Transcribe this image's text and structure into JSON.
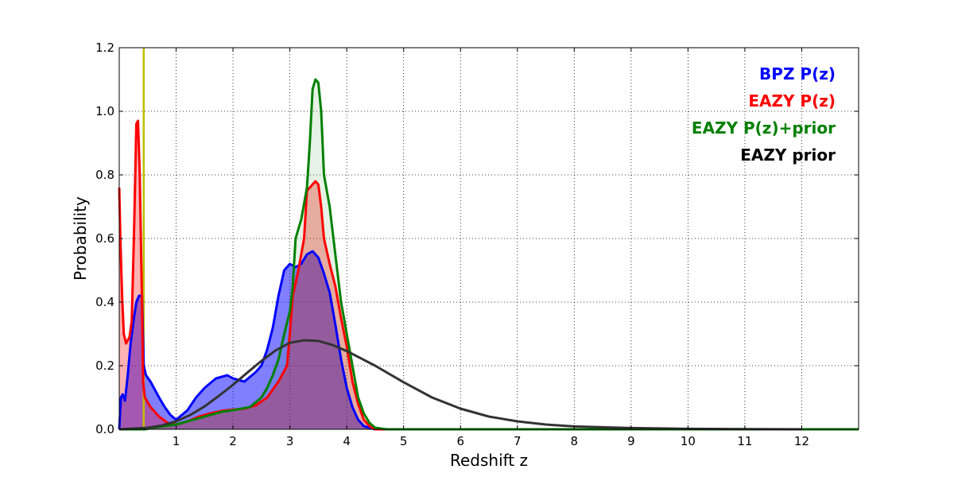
{
  "chart_data": {
    "type": "area",
    "title": "",
    "xlabel": "Redshift z",
    "ylabel": "Probability",
    "xlim": [
      0,
      13
    ],
    "ylim": [
      0,
      1.2
    ],
    "xticks": [
      1,
      2,
      3,
      4,
      5,
      6,
      7,
      8,
      9,
      10,
      11,
      12
    ],
    "yticks": [
      "0.0",
      "0.2",
      "0.4",
      "0.6",
      "0.8",
      "1.0",
      "1.2"
    ],
    "grid": true,
    "legend_placement": "top-right",
    "vertical_line": {
      "x": 0.43,
      "color": "#bfbf00"
    },
    "series": [
      {
        "name": "BPZ P(z)",
        "color": "#0000ff",
        "fill": "#0000ff",
        "fill_opacity": 0.5,
        "points": [
          [
            0,
            0
          ],
          [
            0.03,
            0.1
          ],
          [
            0.06,
            0.11
          ],
          [
            0.1,
            0.09
          ],
          [
            0.15,
            0.17
          ],
          [
            0.2,
            0.27
          ],
          [
            0.25,
            0.34
          ],
          [
            0.3,
            0.4
          ],
          [
            0.35,
            0.42
          ],
          [
            0.4,
            0.42
          ],
          [
            0.43,
            0.2
          ],
          [
            0.47,
            0.17
          ],
          [
            0.55,
            0.15
          ],
          [
            0.7,
            0.1
          ],
          [
            0.8,
            0.07
          ],
          [
            0.9,
            0.045
          ],
          [
            1.0,
            0.03
          ],
          [
            1.1,
            0.045
          ],
          [
            1.2,
            0.06
          ],
          [
            1.35,
            0.1
          ],
          [
            1.5,
            0.13
          ],
          [
            1.7,
            0.16
          ],
          [
            1.9,
            0.17
          ],
          [
            2.0,
            0.16
          ],
          [
            2.2,
            0.15
          ],
          [
            2.4,
            0.18
          ],
          [
            2.5,
            0.2
          ],
          [
            2.6,
            0.25
          ],
          [
            2.7,
            0.32
          ],
          [
            2.8,
            0.42
          ],
          [
            2.9,
            0.5
          ],
          [
            3.0,
            0.52
          ],
          [
            3.1,
            0.51
          ],
          [
            3.2,
            0.52
          ],
          [
            3.3,
            0.55
          ],
          [
            3.4,
            0.56
          ],
          [
            3.5,
            0.54
          ],
          [
            3.6,
            0.49
          ],
          [
            3.7,
            0.43
          ],
          [
            3.8,
            0.33
          ],
          [
            3.9,
            0.22
          ],
          [
            4.0,
            0.13
          ],
          [
            4.1,
            0.07
          ],
          [
            4.2,
            0.03
          ],
          [
            4.3,
            0.01
          ],
          [
            4.5,
            0.0
          ],
          [
            13,
            0.0
          ]
        ]
      },
      {
        "name": "EAZY P(z)",
        "color": "#ff0000",
        "fill": "#ff0000",
        "fill_opacity": 0.3,
        "points": [
          [
            0,
            0.76
          ],
          [
            0.02,
            0.6
          ],
          [
            0.05,
            0.42
          ],
          [
            0.08,
            0.3
          ],
          [
            0.12,
            0.27
          ],
          [
            0.18,
            0.29
          ],
          [
            0.22,
            0.34
          ],
          [
            0.26,
            0.62
          ],
          [
            0.3,
            0.96
          ],
          [
            0.33,
            0.97
          ],
          [
            0.36,
            0.8
          ],
          [
            0.4,
            0.4
          ],
          [
            0.42,
            0.15
          ],
          [
            0.45,
            0.1
          ],
          [
            0.55,
            0.07
          ],
          [
            0.7,
            0.04
          ],
          [
            0.85,
            0.02
          ],
          [
            1.0,
            0.015
          ],
          [
            1.2,
            0.025
          ],
          [
            1.4,
            0.04
          ],
          [
            1.6,
            0.05
          ],
          [
            1.8,
            0.058
          ],
          [
            2.0,
            0.062
          ],
          [
            2.2,
            0.065
          ],
          [
            2.4,
            0.075
          ],
          [
            2.6,
            0.1
          ],
          [
            2.8,
            0.15
          ],
          [
            2.95,
            0.2
          ],
          [
            3.0,
            0.3
          ],
          [
            3.05,
            0.42
          ],
          [
            3.15,
            0.5
          ],
          [
            3.25,
            0.6
          ],
          [
            3.3,
            0.75
          ],
          [
            3.4,
            0.77
          ],
          [
            3.45,
            0.78
          ],
          [
            3.5,
            0.77
          ],
          [
            3.55,
            0.7
          ],
          [
            3.6,
            0.6
          ],
          [
            3.7,
            0.52
          ],
          [
            3.8,
            0.45
          ],
          [
            3.9,
            0.35
          ],
          [
            4.0,
            0.26
          ],
          [
            4.1,
            0.15
          ],
          [
            4.2,
            0.08
          ],
          [
            4.3,
            0.03
          ],
          [
            4.4,
            0.01
          ],
          [
            4.5,
            0.0
          ],
          [
            13,
            0.0
          ]
        ]
      },
      {
        "name": "EAZY P(z)+prior",
        "color": "#008000",
        "fill": "#008000",
        "fill_opacity": 0.1,
        "points": [
          [
            0,
            0
          ],
          [
            0.3,
            0
          ],
          [
            0.45,
            0
          ],
          [
            0.6,
            0.005
          ],
          [
            0.8,
            0.01
          ],
          [
            1.0,
            0.015
          ],
          [
            1.2,
            0.025
          ],
          [
            1.5,
            0.04
          ],
          [
            1.8,
            0.055
          ],
          [
            2.0,
            0.06
          ],
          [
            2.3,
            0.07
          ],
          [
            2.5,
            0.1
          ],
          [
            2.6,
            0.13
          ],
          [
            2.7,
            0.17
          ],
          [
            2.8,
            0.22
          ],
          [
            2.9,
            0.3
          ],
          [
            3.0,
            0.37
          ],
          [
            3.05,
            0.45
          ],
          [
            3.1,
            0.6
          ],
          [
            3.2,
            0.66
          ],
          [
            3.3,
            0.76
          ],
          [
            3.35,
            0.9
          ],
          [
            3.4,
            1.07
          ],
          [
            3.45,
            1.1
          ],
          [
            3.5,
            1.09
          ],
          [
            3.55,
            1.0
          ],
          [
            3.6,
            0.8
          ],
          [
            3.7,
            0.7
          ],
          [
            3.8,
            0.55
          ],
          [
            3.9,
            0.4
          ],
          [
            4.0,
            0.3
          ],
          [
            4.1,
            0.2
          ],
          [
            4.2,
            0.1
          ],
          [
            4.3,
            0.05
          ],
          [
            4.4,
            0.02
          ],
          [
            4.5,
            0.005
          ],
          [
            4.7,
            0.0
          ],
          [
            13,
            0.0
          ]
        ]
      },
      {
        "name": "EAZY prior",
        "color": "#333333",
        "fill": "none",
        "fill_opacity": 0,
        "points": [
          [
            0,
            0.0
          ],
          [
            0.5,
            0.005
          ],
          [
            0.75,
            0.012
          ],
          [
            1.0,
            0.025
          ],
          [
            1.25,
            0.045
          ],
          [
            1.5,
            0.072
          ],
          [
            1.75,
            0.105
          ],
          [
            2.0,
            0.14
          ],
          [
            2.25,
            0.178
          ],
          [
            2.5,
            0.215
          ],
          [
            2.75,
            0.248
          ],
          [
            3.0,
            0.272
          ],
          [
            3.25,
            0.28
          ],
          [
            3.5,
            0.278
          ],
          [
            3.75,
            0.265
          ],
          [
            4.0,
            0.246
          ],
          [
            4.5,
            0.2
          ],
          [
            5.0,
            0.148
          ],
          [
            5.5,
            0.1
          ],
          [
            6.0,
            0.065
          ],
          [
            6.5,
            0.04
          ],
          [
            7.0,
            0.025
          ],
          [
            7.5,
            0.015
          ],
          [
            8.0,
            0.009
          ],
          [
            9.0,
            0.004
          ],
          [
            10.0,
            0.0015
          ],
          [
            11.0,
            0.0005
          ],
          [
            12.0,
            0.0
          ]
        ]
      }
    ]
  }
}
